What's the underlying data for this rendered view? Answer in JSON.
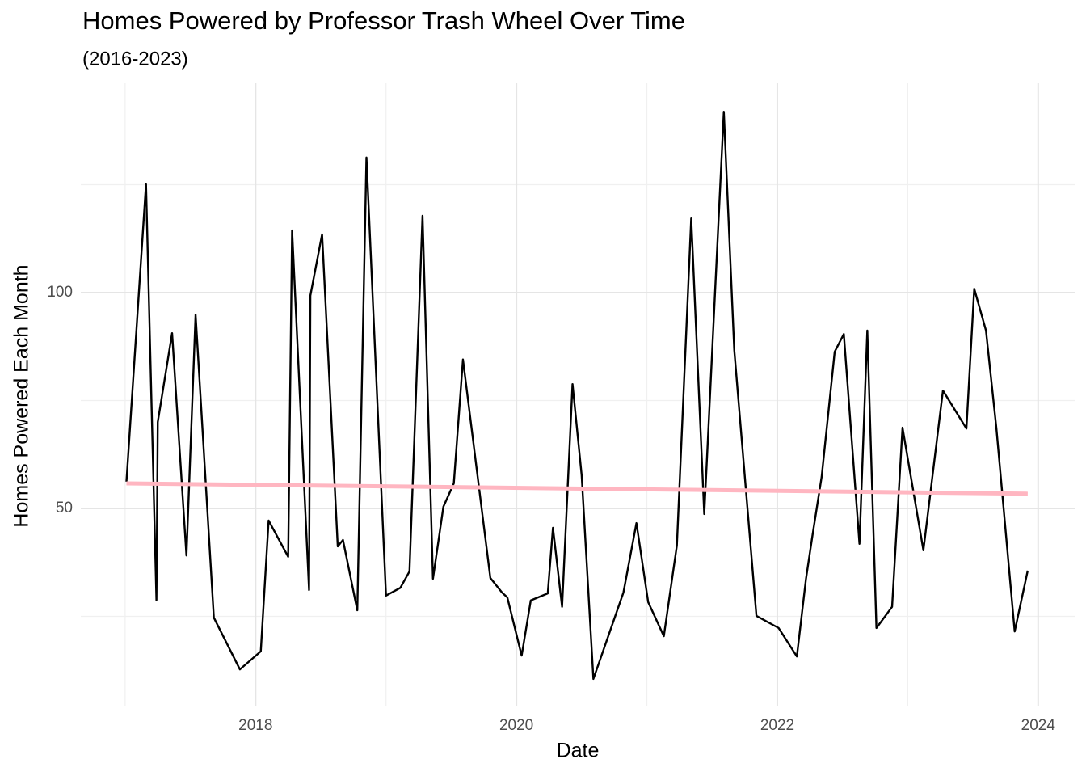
{
  "chart_data": {
    "type": "line",
    "title": "Homes Powered by Professor Trash Wheel Over Time",
    "subtitle": "(2016-2023)",
    "x_label": "Date",
    "y_label": "Homes Powered Each Month",
    "x": [
      2017.01,
      2017.16,
      2017.24,
      2017.25,
      2017.36,
      2017.47,
      2017.54,
      2017.68,
      2017.88,
      2018.04,
      2018.1,
      2018.25,
      2018.28,
      2018.41,
      2018.42,
      2018.51,
      2018.63,
      2018.67,
      2018.78,
      2018.85,
      2019.0,
      2019.11,
      2019.18,
      2019.28,
      2019.36,
      2019.44,
      2019.52,
      2019.59,
      2019.8,
      2019.89,
      2019.93,
      2020.04,
      2020.11,
      2020.24,
      2020.28,
      2020.35,
      2020.43,
      2020.5,
      2020.59,
      2020.82,
      2020.92,
      2021.01,
      2021.13,
      2021.23,
      2021.34,
      2021.44,
      2021.59,
      2021.67,
      2021.84,
      2022.01,
      2022.15,
      2022.22,
      2022.27,
      2022.34,
      2022.44,
      2022.51,
      2022.63,
      2022.69,
      2022.76,
      2022.88,
      2022.96,
      2023.12,
      2023.27,
      2023.45,
      2023.51,
      2023.6,
      2023.68,
      2023.82,
      2023.92
    ],
    "series": [
      {
        "color": "#000000",
        "values": [
          56.2,
          125.1,
          28.7,
          70.0,
          90.6,
          39.1,
          94.9,
          24.7,
          12.7,
          16.9,
          47.2,
          38.8,
          114.4,
          31.1,
          99.3,
          113.5,
          41.2,
          42.7,
          26.4,
          131.3,
          29.8,
          31.6,
          35.4,
          117.8,
          33.7,
          50.4,
          55.8,
          84.5,
          33.9,
          30.5,
          29.4,
          15.9,
          28.7,
          30.3,
          45.5,
          27.2,
          78.8,
          57.7,
          10.5,
          30.5,
          46.6,
          28.3,
          20.4,
          41.4,
          117.2,
          48.7,
          141.9,
          86.7,
          25.1,
          22.3,
          15.7,
          33.7,
          43.8,
          57.3,
          86.3,
          90.4,
          41.8,
          91.2,
          22.3,
          27.2,
          68.7,
          40.3,
          77.3,
          68.5,
          100.9,
          91.2,
          68.5,
          21.5,
          35.6
        ]
      }
    ],
    "trend_line": {
      "color": "#ffb6c1",
      "x": [
        2017.01,
        2023.92
      ],
      "values": [
        55.8,
        53.4
      ]
    },
    "xlim": [
      2016.66,
      2024.28
    ],
    "xticks": [
      2018,
      2020,
      2022,
      2024
    ],
    "xminor": [
      2017,
      2019,
      2021,
      2023
    ],
    "ylim": [
      4.3,
      148.5
    ],
    "yticks": [
      50,
      100
    ],
    "yminor": [
      25,
      75,
      125
    ],
    "grid": true
  }
}
